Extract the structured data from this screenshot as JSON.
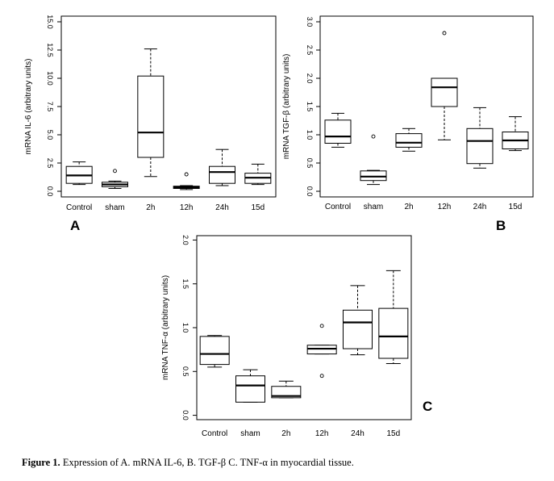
{
  "chart_data": [
    {
      "type": "boxplot",
      "panel_label": "A",
      "ylabel": "mRNA IL-6 (arbitrary units)",
      "categories": [
        "Control",
        "sham",
        "2h",
        "12h",
        "24h",
        "15d"
      ],
      "ylim": [
        -0.5,
        15.5
      ],
      "yticks": [
        0,
        2.5,
        5,
        7.5,
        10,
        12.5,
        15
      ],
      "ytick_labels": [
        "0.0",
        "2.5",
        "5.0",
        "7.5",
        "10.0",
        "12.5",
        "15.0"
      ],
      "boxes": [
        {
          "whisker_low": 0.6,
          "q1": 0.7,
          "median": 1.4,
          "q3": 2.2,
          "whisker_high": 2.6,
          "outliers": []
        },
        {
          "whisker_low": 0.25,
          "q1": 0.4,
          "median": 0.6,
          "q3": 0.8,
          "whisker_high": 0.9,
          "outliers": [
            1.8
          ]
        },
        {
          "whisker_low": 1.3,
          "q1": 3.0,
          "median": 5.2,
          "q3": 10.2,
          "whisker_high": 12.6,
          "outliers": []
        },
        {
          "whisker_low": 0.15,
          "q1": 0.25,
          "median": 0.35,
          "q3": 0.45,
          "whisker_high": 0.5,
          "outliers": [
            1.5
          ]
        },
        {
          "whisker_low": 0.5,
          "q1": 0.7,
          "median": 1.7,
          "q3": 2.2,
          "whisker_high": 3.7,
          "outliers": []
        },
        {
          "whisker_low": 0.6,
          "q1": 0.7,
          "median": 1.2,
          "q3": 1.6,
          "whisker_high": 2.4,
          "outliers": []
        }
      ]
    },
    {
      "type": "boxplot",
      "panel_label": "B",
      "ylabel": "mRNA TGF-β (arbitrary units)",
      "categories": [
        "Control",
        "sham",
        "2h",
        "12h",
        "24h",
        "15d"
      ],
      "ylim": [
        -0.1,
        3.1
      ],
      "yticks": [
        0,
        0.5,
        1,
        1.5,
        2,
        2.5,
        3
      ],
      "ytick_labels": [
        "0.0",
        "0.5",
        "1.0",
        "1.5",
        "2.0",
        "2.5",
        "3.0"
      ],
      "boxes": [
        {
          "whisker_low": 0.78,
          "q1": 0.85,
          "median": 0.97,
          "q3": 1.26,
          "whisker_high": 1.38,
          "outliers": []
        },
        {
          "whisker_low": 0.12,
          "q1": 0.19,
          "median": 0.26,
          "q3": 0.36,
          "whisker_high": 0.37,
          "outliers": [
            0.97
          ]
        },
        {
          "whisker_low": 0.71,
          "q1": 0.78,
          "median": 0.86,
          "q3": 1.02,
          "whisker_high": 1.11,
          "outliers": []
        },
        {
          "whisker_low": 0.91,
          "q1": 1.5,
          "median": 1.84,
          "q3": 2.0,
          "whisker_high": 2.0,
          "outliers": [
            2.8
          ]
        },
        {
          "whisker_low": 0.41,
          "q1": 0.49,
          "median": 0.89,
          "q3": 1.11,
          "whisker_high": 1.48,
          "outliers": []
        },
        {
          "whisker_low": 0.72,
          "q1": 0.75,
          "median": 0.9,
          "q3": 1.05,
          "whisker_high": 1.32,
          "outliers": []
        }
      ]
    },
    {
      "type": "boxplot",
      "panel_label": "C",
      "ylabel": "mRNA TNF-α (arbitrary units)",
      "categories": [
        "Control",
        "sham",
        "2h",
        "12h",
        "24h",
        "15d"
      ],
      "ylim": [
        -0.05,
        2.05
      ],
      "yticks": [
        0,
        0.5,
        1,
        1.5,
        2
      ],
      "ytick_labels": [
        "0.0",
        "0.5",
        "1.0",
        "1.5",
        "2.0"
      ],
      "boxes": [
        {
          "whisker_low": 0.55,
          "q1": 0.58,
          "median": 0.7,
          "q3": 0.9,
          "whisker_high": 0.91,
          "outliers": []
        },
        {
          "whisker_low": 0.15,
          "q1": 0.15,
          "median": 0.34,
          "q3": 0.45,
          "whisker_high": 0.52,
          "outliers": []
        },
        {
          "whisker_low": 0.2,
          "q1": 0.2,
          "median": 0.22,
          "q3": 0.33,
          "whisker_high": 0.39,
          "outliers": []
        },
        {
          "whisker_low": 0.7,
          "q1": 0.7,
          "median": 0.76,
          "q3": 0.8,
          "whisker_high": 0.8,
          "outliers": [
            1.02,
            0.45
          ]
        },
        {
          "whisker_low": 0.69,
          "q1": 0.76,
          "median": 1.06,
          "q3": 1.2,
          "whisker_high": 1.48,
          "outliers": []
        },
        {
          "whisker_low": 0.59,
          "q1": 0.65,
          "median": 0.9,
          "q3": 1.22,
          "whisker_high": 1.65,
          "outliers": []
        }
      ]
    }
  ],
  "caption": {
    "label": "Figure 1.",
    "text": " Expression of A. mRNA IL-6, B. TGF-β C. TNF-α in myocardial tissue."
  }
}
